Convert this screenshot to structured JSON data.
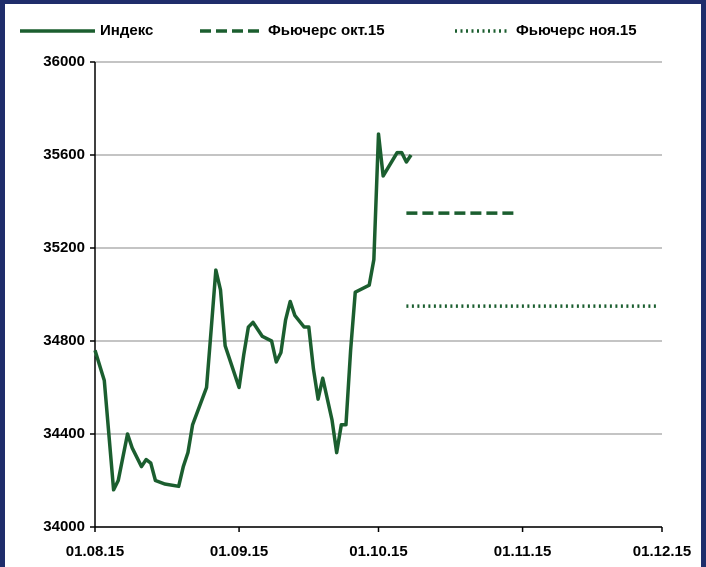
{
  "chart_data": {
    "type": "line",
    "series": [
      {
        "name": "Индекс",
        "color": "#1b5e2f",
        "style": "solid",
        "x": [
          "01.08.15",
          "03.08.15",
          "05.08.15",
          "06.08.15",
          "07.08.15",
          "08.08.15",
          "09.08.15",
          "11.08.15",
          "12.08.15",
          "13.08.15",
          "14.08.15",
          "16.08.15",
          "19.08.15",
          "20.08.15",
          "21.08.15",
          "22.08.15",
          "25.08.15",
          "26.08.15",
          "27.08.15",
          "28.08.15",
          "29.08.15",
          "01.09.15",
          "02.09.15",
          "03.09.15",
          "04.09.15",
          "05.09.15",
          "06.09.15",
          "08.09.15",
          "09.09.15",
          "10.09.15",
          "11.09.15",
          "12.09.15",
          "13.09.15",
          "15.09.15",
          "16.09.15",
          "17.09.15",
          "18.09.15",
          "19.09.15",
          "21.09.15",
          "22.09.15",
          "23.09.15",
          "24.09.15",
          "25.09.15",
          "26.09.15",
          "29.09.15",
          "30.09.15",
          "01.10.15",
          "02.10.15",
          "05.10.15",
          "06.10.15",
          "07.10.15",
          "08.10.15"
        ],
        "values": [
          34760,
          34630,
          34160,
          34200,
          34300,
          34400,
          34340,
          34260,
          34290,
          34275,
          34200,
          34185,
          34175,
          34260,
          34320,
          34440,
          34600,
          34850,
          35105,
          35020,
          34780,
          34600,
          34740,
          34860,
          34880,
          34850,
          34820,
          34800,
          34710,
          34750,
          34890,
          34970,
          34910,
          34860,
          34860,
          34680,
          34550,
          34640,
          34460,
          34320,
          34440,
          34440,
          34760,
          35010,
          35040,
          35150,
          35690,
          35510,
          35610,
          35610,
          35570,
          35600
        ]
      },
      {
        "name": "Фьючерс окт.15",
        "color": "#1b5e2f",
        "style": "dashed",
        "x": [
          "07.10.15",
          "31.10.15"
        ],
        "values": [
          35350,
          35350
        ]
      },
      {
        "name": "Фьючерс ноя.15",
        "color": "#1b5e2f",
        "style": "dotted",
        "x": [
          "07.10.15",
          "30.11.15"
        ],
        "values": [
          34950,
          34950
        ]
      }
    ],
    "xlim": [
      "01.08.15",
      "01.12.15"
    ],
    "xticks": [
      "01.08.15",
      "01.09.15",
      "01.10.15",
      "01.11.15",
      "01.12.15"
    ],
    "ylim": [
      34000,
      36000
    ],
    "yticks": [
      34000,
      34400,
      34800,
      35200,
      35600,
      36000
    ],
    "grid": true
  }
}
